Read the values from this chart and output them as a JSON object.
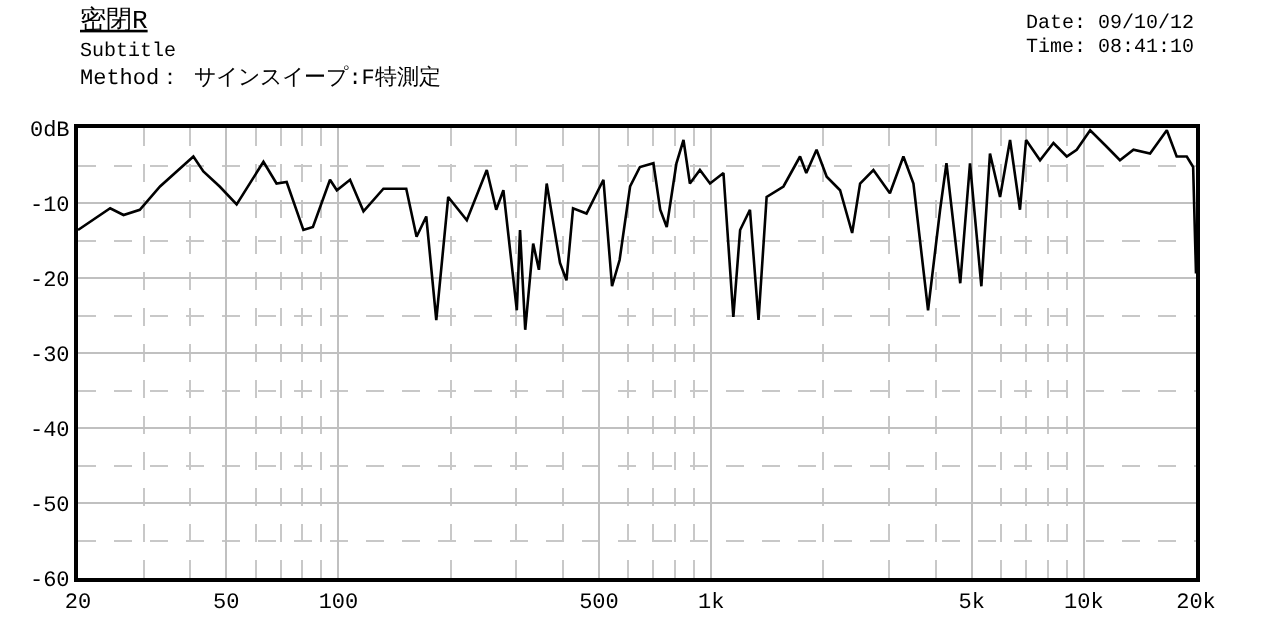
{
  "chart_data": {
    "type": "line",
    "title": "密閉R",
    "subtitle": "Subtitle",
    "annotations": [
      "Method： サインスイープ:F特測定",
      "Date: 09/10/12",
      "Time: 08:41:10"
    ],
    "x": [
      20,
      24.4,
      26.5,
      29.3,
      33.2,
      40.8,
      43.4,
      48,
      53.3,
      62.9,
      68.2,
      72.6,
      80.5,
      85.4,
      94.9,
      99,
      107.4,
      116.7,
      132,
      152,
      162,
      172,
      183,
      197,
      221,
      250,
      265,
      277,
      301,
      307,
      317,
      333,
      345,
      362,
      393,
      409,
      426,
      463,
      514,
      542,
      568,
      606,
      644,
      700,
      730,
      760,
      807,
      843,
      877,
      933,
      993,
      1079,
      1147,
      1196,
      1271,
      1340,
      1409,
      1563,
      1732,
      1800,
      1918,
      2042,
      2218,
      2390,
      2510,
      2725,
      3018,
      3280,
      3490,
      3820,
      4115,
      4280,
      4660,
      4950,
      5310,
      5600,
      5960,
      6340,
      6740,
      7000,
      7630,
      8290,
      9000,
      9570,
      10400,
      11520,
      12500,
      13590,
      15060,
      16700,
      17750,
      18890,
      19650,
      20000
    ],
    "series": [
      {
        "color": "#000000",
        "values": [
          -13.6,
          -10.7,
          -11.6,
          -10.9,
          -7.8,
          -3.8,
          -5.8,
          -7.8,
          -10.2,
          -4.5,
          -7.4,
          -7.2,
          -13.6,
          -13.2,
          -6.9,
          -8.3,
          -6.9,
          -11.1,
          -8.1,
          -8.1,
          -14.5,
          -11.8,
          -25.6,
          -9.2,
          -12.3,
          -5.6,
          -10.9,
          -8.3,
          -24.3,
          -13.6,
          -26.9,
          -15.4,
          -18.9,
          -7.4,
          -18,
          -20.3,
          -10.7,
          -11.4,
          -6.9,
          -21.1,
          -17.6,
          -7.8,
          -5.2,
          -4.7,
          -10.9,
          -13.2,
          -4.7,
          -1.6,
          -7.4,
          -5.6,
          -7.4,
          -6,
          -25.2,
          -13.6,
          -10.9,
          -25.6,
          -9.2,
          -7.8,
          -3.8,
          -6,
          -2.9,
          -6.5,
          -8.3,
          -14,
          -7.4,
          -5.6,
          -8.7,
          -3.8,
          -7.4,
          -24.3,
          -10.9,
          -4.7,
          -20.7,
          -4.7,
          -21.1,
          -3.4,
          -9.2,
          -1.6,
          -10.9,
          -1.6,
          -4.3,
          -2,
          -3.8,
          -2.9,
          -0.3,
          -2.5,
          -4.3,
          -2.9,
          -3.4,
          -0.3,
          -3.8,
          -3.8,
          -5.2,
          -19.4
        ]
      }
    ],
    "log": "x",
    "xlim": [
      20,
      20000
    ],
    "ylim": [
      -60,
      0
    ],
    "xticks": [
      20,
      50,
      100,
      500,
      {
        "value": 1000,
        "label": "1k"
      },
      {
        "value": 5000,
        "label": "5k"
      },
      {
        "value": 10000,
        "label": "10k"
      },
      {
        "value": 20000,
        "label": "20k"
      }
    ],
    "yticks": [
      -60,
      -50,
      -40,
      -30,
      -20,
      -10,
      {
        "value": 0,
        "label": "0dB"
      }
    ],
    "grid": true,
    "marker": "none",
    "line_style": "solid",
    "legend": false
  }
}
